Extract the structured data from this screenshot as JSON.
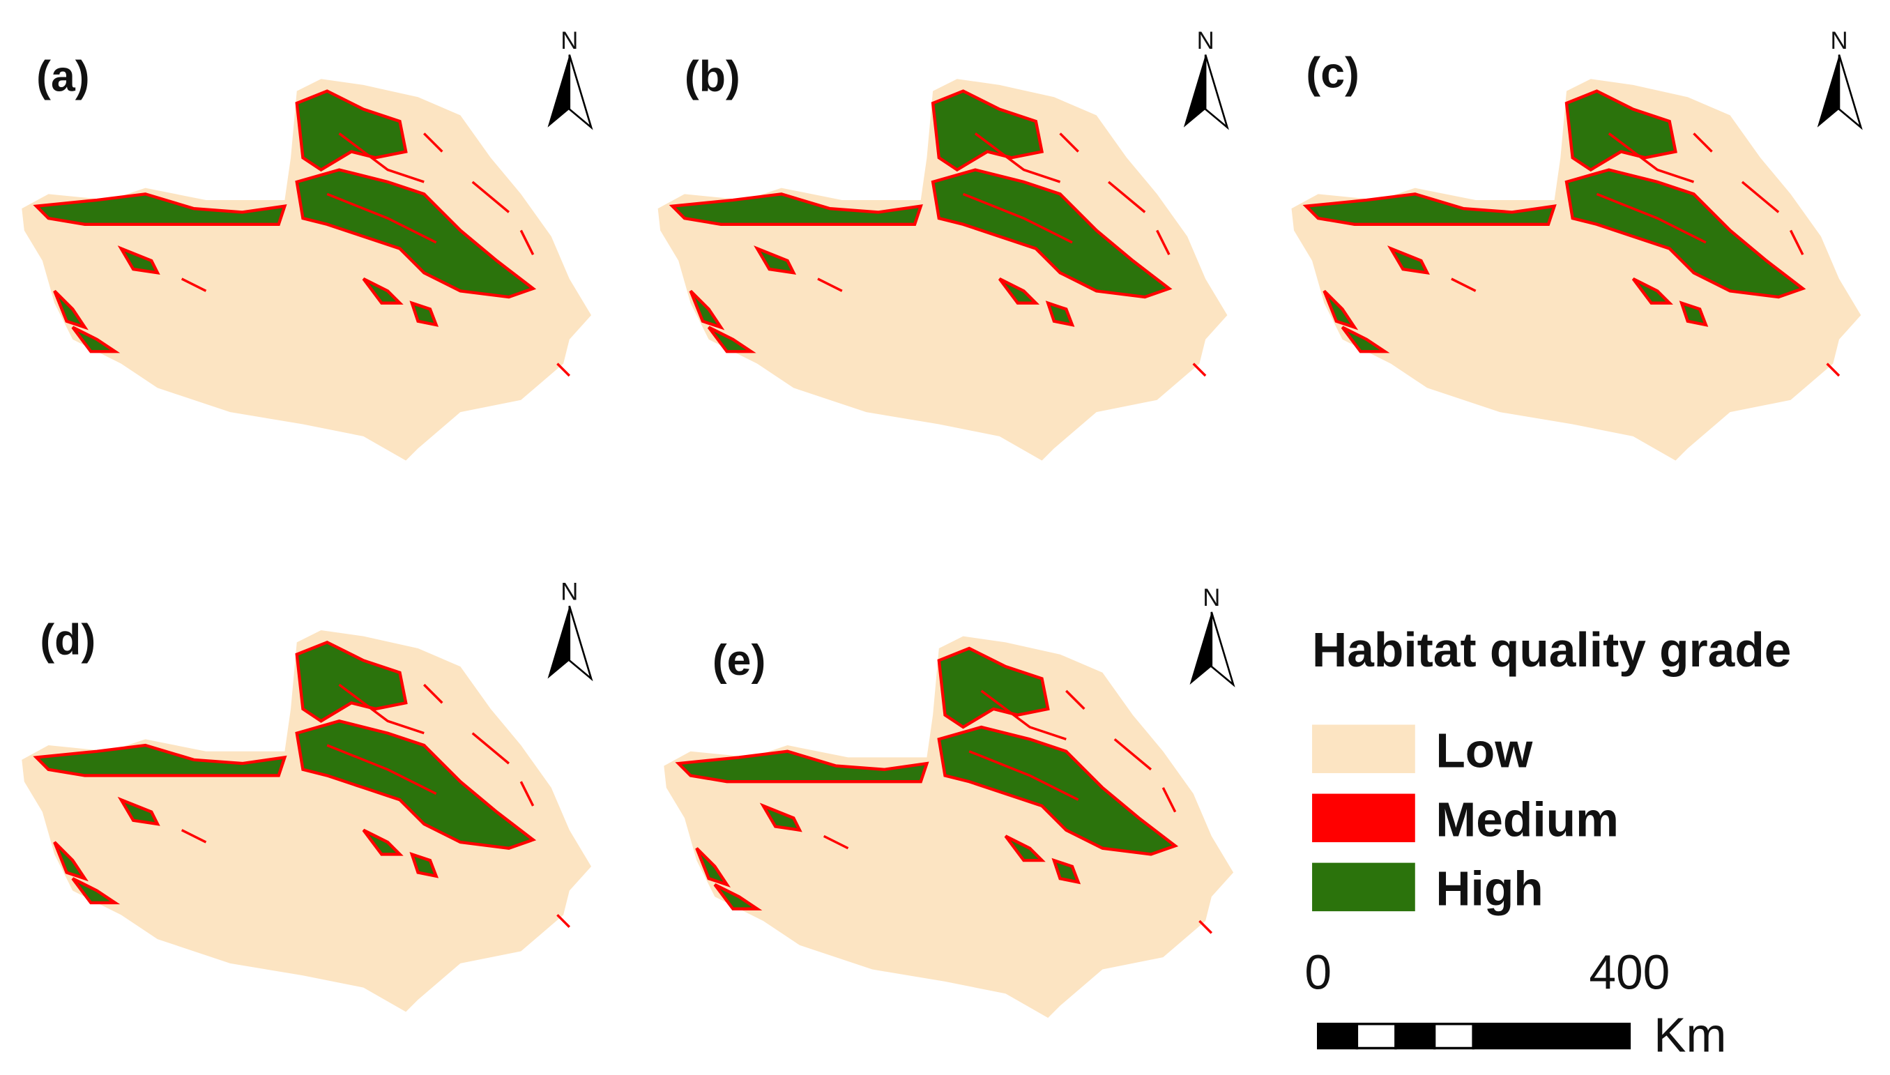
{
  "panels": [
    {
      "label": "(a)",
      "north": "N"
    },
    {
      "label": "(b)",
      "north": "N"
    },
    {
      "label": "(c)",
      "north": "N"
    },
    {
      "label": "(d)",
      "north": "N"
    },
    {
      "label": "(e)",
      "north": "N"
    }
  ],
  "legend": {
    "title": "Habitat quality grade",
    "items": [
      {
        "label": "Low",
        "color": "#fce4c2"
      },
      {
        "label": "Medium",
        "color": "#ff0000"
      },
      {
        "label": "High",
        "color": "#2b730c"
      }
    ]
  },
  "scale_bar": {
    "ticks": [
      0,
      400
    ],
    "unit": "Km"
  }
}
